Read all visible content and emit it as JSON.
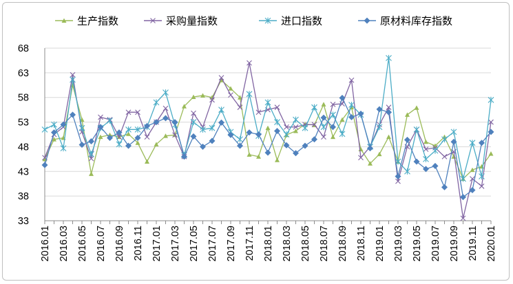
{
  "chart_data": {
    "type": "line",
    "title": "",
    "xlabel": "",
    "ylabel": "",
    "ylim": [
      33,
      68
    ],
    "yticks": [
      33,
      38,
      43,
      48,
      53,
      58,
      63,
      68
    ],
    "grid": "horizontal",
    "legend_position": "top",
    "x": [
      "2016.01",
      "2016.02",
      "2016.03",
      "2016.04",
      "2016.05",
      "2016.06",
      "2016.07",
      "2016.08",
      "2016.09",
      "2016.10",
      "2016.11",
      "2016.12",
      "2017.01",
      "2017.02",
      "2017.03",
      "2017.04",
      "2017.05",
      "2017.06",
      "2017.07",
      "2017.08",
      "2017.09",
      "2017.10",
      "2017.11",
      "2017.12",
      "2018.01",
      "2018.02",
      "2018.03",
      "2018.04",
      "2018.05",
      "2018.06",
      "2018.07",
      "2018.08",
      "2018.09",
      "2018.10",
      "2018.11",
      "2018.12",
      "2019.01",
      "2019.02",
      "2019.03",
      "2019.04",
      "2019.05",
      "2019.06",
      "2019.07",
      "2019.08",
      "2019.09",
      "2019.10",
      "2019.11",
      "2019.12",
      "2020.01"
    ],
    "x_tick_labels": [
      "2016.01",
      "2016.03",
      "2016.05",
      "2016.07",
      "2016.09",
      "2016.11",
      "2017.01",
      "2017.03",
      "2017.05",
      "2017.07",
      "2017.09",
      "2017.11",
      "2018.01",
      "2018.03",
      "2018.05",
      "2018.07",
      "2018.09",
      "2018.11",
      "2019.01",
      "2019.03",
      "2019.05",
      "2019.07",
      "2019.09",
      "2019.11",
      "2020.01"
    ],
    "series": [
      {
        "name": "生产指数",
        "color": "#9BBB59",
        "marker": "triangle",
        "values": [
          45.5,
          49.5,
          49.8,
          60.5,
          53.5,
          42.5,
          50.0,
          50.4,
          50.0,
          50.6,
          48.8,
          45.0,
          48.5,
          50.2,
          50.4,
          56.2,
          58.1,
          58.4,
          58.0,
          61.5,
          59.8,
          58.0,
          46.4,
          46.0,
          51.8,
          45.3,
          50.4,
          51.2,
          52.6,
          52.4,
          56.6,
          50.0,
          53.5,
          56.0,
          47.5,
          44.6,
          46.5,
          50.0,
          45.0,
          54.5,
          55.9,
          49.0,
          48.2,
          50.0,
          46.0,
          41.5,
          43.3,
          44.0,
          46.6
        ]
      },
      {
        "name": "采购量指数",
        "color": "#8064A2",
        "marker": "x",
        "values": [
          45.8,
          50.5,
          52.0,
          62.6,
          51.0,
          45.6,
          54.0,
          53.5,
          50.0,
          55.0,
          55.0,
          50.0,
          53.0,
          55.8,
          50.4,
          46.0,
          54.8,
          52.0,
          57.5,
          62.0,
          58.5,
          56.0,
          65.0,
          55.0,
          55.5,
          56.0,
          52.0,
          52.0,
          52.5,
          52.5,
          50.0,
          56.6,
          56.7,
          61.5,
          45.8,
          48.0,
          52.5,
          56.0,
          41.0,
          48.0,
          51.5,
          47.5,
          47.8,
          46.0,
          47.0,
          33.5,
          41.5,
          40.0,
          53.0
        ]
      },
      {
        "name": "进口指数",
        "color": "#4BACC6",
        "marker": "star",
        "values": [
          51.5,
          52.5,
          47.7,
          61.6,
          51.8,
          46.5,
          51.8,
          53.3,
          48.5,
          51.5,
          51.5,
          52.0,
          57.0,
          59.0,
          52.4,
          46.3,
          53.0,
          51.5,
          51.8,
          55.5,
          51.0,
          49.5,
          58.7,
          50.2,
          57.0,
          53.0,
          50.5,
          53.5,
          51.8,
          56.0,
          52.0,
          54.5,
          50.6,
          56.5,
          54.5,
          48.0,
          52.0,
          66.0,
          45.0,
          43.0,
          51.5,
          45.5,
          47.2,
          49.5,
          51.0,
          41.5,
          48.8,
          42.0,
          57.5
        ]
      },
      {
        "name": "原材料库存指数",
        "color": "#4F81BD",
        "marker": "diamond",
        "values": [
          44.3,
          50.9,
          52.5,
          54.5,
          48.4,
          49.1,
          52.0,
          49.8,
          50.9,
          48.2,
          49.8,
          52.2,
          53.0,
          53.8,
          53.0,
          46.0,
          50.1,
          48.0,
          49.2,
          52.9,
          50.4,
          48.2,
          50.9,
          50.5,
          46.8,
          51.2,
          48.3,
          46.7,
          48.2,
          49.5,
          53.9,
          52.0,
          57.9,
          54.0,
          54.7,
          47.7,
          55.6,
          55.0,
          42.0,
          49.4,
          45.0,
          43.5,
          44.1,
          39.8,
          49.0,
          37.8,
          39.2,
          48.8,
          51.0
        ]
      }
    ]
  }
}
